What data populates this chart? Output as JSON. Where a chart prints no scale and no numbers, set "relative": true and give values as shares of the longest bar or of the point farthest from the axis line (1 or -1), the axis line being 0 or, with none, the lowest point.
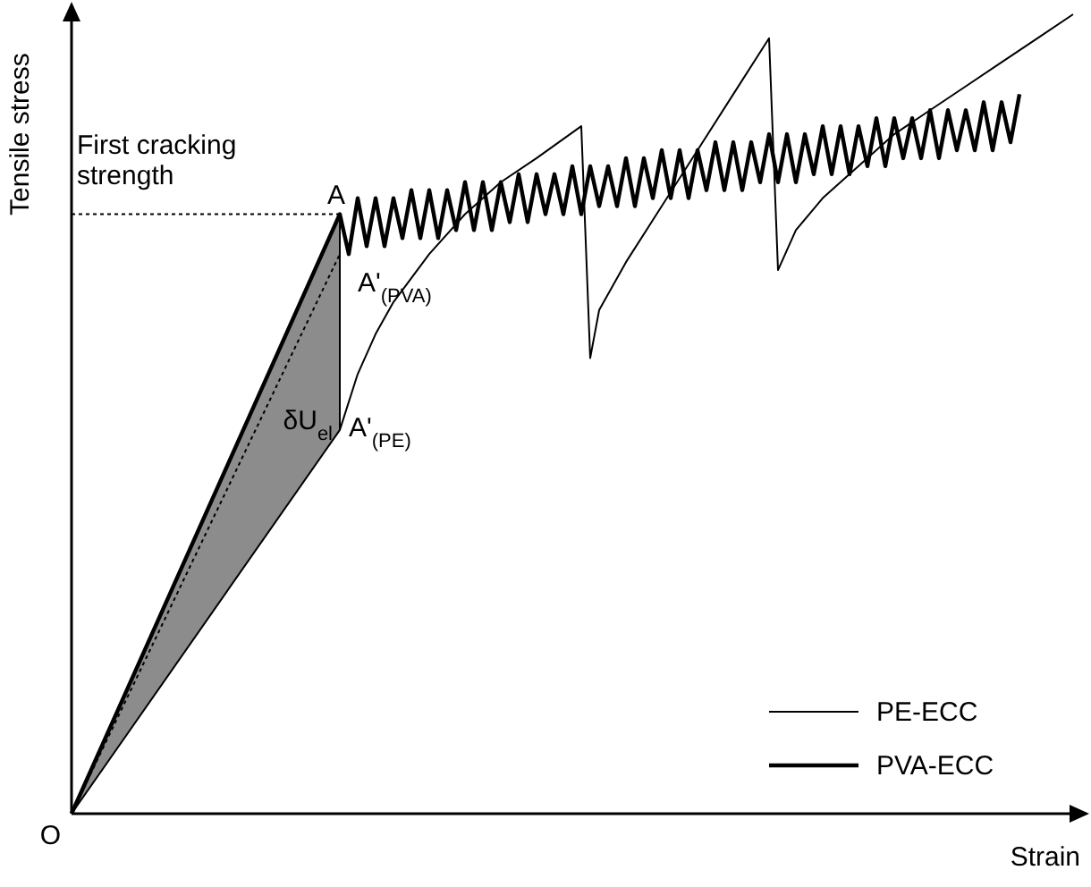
{
  "chart_data": {
    "type": "line",
    "relative": true,
    "xlabel": "Strain",
    "ylabel": "Tensile stress",
    "tick_labels": false,
    "legend": "bottom right",
    "categories": [
      null,
      null,
      null,
      null,
      null,
      null,
      null,
      null,
      null,
      null,
      null,
      null,
      null,
      null,
      null,
      null,
      null,
      null,
      null,
      null,
      null,
      null,
      null,
      null,
      null,
      null,
      null,
      null,
      null,
      null,
      null,
      null,
      null,
      null,
      null,
      null,
      null,
      null,
      null,
      null,
      null,
      null,
      null,
      null,
      null,
      null,
      null,
      null,
      null,
      null,
      null,
      null,
      null,
      null,
      null,
      null,
      null,
      null,
      null,
      null,
      null,
      null,
      null,
      null,
      null,
      null,
      null,
      null,
      null,
      null,
      null,
      null,
      null,
      null,
      null,
      null,
      null,
      null,
      null,
      null,
      null,
      null,
      null,
      null,
      null,
      null,
      null,
      null,
      null,
      null,
      null,
      null,
      null,
      null,
      null,
      null,
      null,
      null,
      null,
      null,
      null,
      null,
      null,
      null,
      null,
      null,
      null,
      null,
      null,
      null,
      null,
      null,
      null
    ],
    "series": [
      {
        "name": "PE-ECC",
        "color": "#000000",
        "values": [
          0,
          null,
          null,
          null,
          null,
          null,
          null,
          null,
          null,
          null,
          null,
          null,
          null,
          null,
          null,
          null,
          null,
          null,
          null,
          null,
          null,
          null,
          null,
          null,
          null,
          null,
          null,
          null,
          null,
          null,
          0.48,
          null,
          0.55,
          null,
          0.6,
          null,
          0.64,
          null,
          null,
          null,
          0.7,
          null,
          null,
          null,
          0.75,
          null,
          null,
          null,
          0.79,
          null,
          null,
          null,
          0.82,
          null,
          null,
          null,
          null,
          0.86,
          0.57,
          0.63,
          null,
          null,
          0.69,
          null,
          null,
          null,
          0.76,
          null,
          null,
          null,
          0.83,
          null,
          null,
          null,
          0.9,
          null,
          null,
          null,
          0.97,
          0.68,
          null,
          0.73,
          null,
          null,
          0.77,
          null,
          null,
          null,
          0.81,
          null,
          null,
          null,
          0.85,
          null,
          null,
          null,
          0.88,
          null,
          null,
          null,
          0.91,
          null,
          null,
          null,
          0.94,
          null,
          null,
          null,
          0.97,
          null,
          null,
          null,
          1
        ]
      },
      {
        "name": "PVA-ECC",
        "color": "#000000",
        "values": [
          0,
          null,
          null,
          null,
          null,
          null,
          null,
          null,
          null,
          null,
          null,
          null,
          null,
          null,
          null,
          null,
          null,
          null,
          null,
          null,
          null,
          null,
          null,
          null,
          null,
          null,
          null,
          null,
          null,
          null,
          0.75,
          0.7,
          0.77,
          0.71,
          0.77,
          0.71,
          0.77,
          0.72,
          0.78,
          0.72,
          0.78,
          0.72,
          0.78,
          0.73,
          0.79,
          0.73,
          0.79,
          0.73,
          0.79,
          0.74,
          0.8,
          0.74,
          0.8,
          0.75,
          0.8,
          0.75,
          0.81,
          0.75,
          0.81,
          0.76,
          0.81,
          0.76,
          0.82,
          0.76,
          0.82,
          0.77,
          0.83,
          0.77,
          0.83,
          0.77,
          0.83,
          0.78,
          0.84,
          0.78,
          0.84,
          0.78,
          0.84,
          0.79,
          0.85,
          0.79,
          0.85,
          0.79,
          0.85,
          0.8,
          0.86,
          0.8,
          0.86,
          0.8,
          0.86,
          0.81,
          0.87,
          0.81,
          0.87,
          0.82,
          0.87,
          0.82,
          0.88,
          0.82,
          0.88,
          0.83,
          0.88,
          0.83,
          0.89,
          0.83,
          0.89,
          0.84,
          0.9,
          null,
          null,
          null,
          null,
          null,
          null
        ]
      },
      {
        "color": "#000000",
        "line_style": "dotted",
        "values": [
          0,
          null,
          null,
          null,
          null,
          null,
          null,
          null,
          null,
          null,
          null,
          null,
          null,
          null,
          null,
          null,
          null,
          null,
          null,
          null,
          null,
          null,
          null,
          null,
          null,
          null,
          null,
          null,
          null,
          null,
          0.7,
          null,
          null,
          null,
          null,
          null,
          null,
          null,
          null,
          null,
          null,
          null,
          null,
          null,
          null,
          null,
          null,
          null,
          null,
          null,
          null,
          null,
          null,
          null,
          null,
          null,
          null,
          null,
          null,
          null,
          null,
          null,
          null,
          null,
          null,
          null,
          null,
          null,
          null,
          null,
          null,
          null,
          null,
          null,
          null,
          null,
          null,
          null,
          null,
          null,
          null,
          null,
          null,
          null,
          null,
          null,
          null,
          null,
          null,
          null,
          null,
          null,
          null,
          null,
          null,
          null,
          null,
          null,
          null,
          null,
          null,
          null,
          null,
          null,
          null,
          null,
          null,
          null,
          null,
          null,
          null,
          null,
          null
        ]
      },
      {
        "color": "#000000",
        "line_style": "dotted",
        "values": [
          0.75,
          null,
          null,
          null,
          null,
          null,
          null,
          null,
          null,
          null,
          null,
          null,
          null,
          null,
          null,
          null,
          null,
          null,
          null,
          null,
          null,
          null,
          null,
          null,
          null,
          null,
          null,
          null,
          null,
          null,
          0.75,
          null,
          null,
          null,
          null,
          null,
          null,
          null,
          null,
          null,
          null,
          null,
          null,
          null,
          null,
          null,
          null,
          null,
          null,
          null,
          null,
          null,
          null,
          null,
          null,
          null,
          null,
          null,
          null,
          null,
          null,
          null,
          null,
          null,
          null,
          null,
          null,
          null,
          null,
          null,
          null,
          null,
          null,
          null,
          null,
          null,
          null,
          null,
          null,
          null,
          null,
          null,
          null,
          null,
          null,
          null,
          null,
          null,
          null,
          null,
          null,
          null,
          null,
          null,
          null,
          null,
          null,
          null,
          null,
          null,
          null,
          null,
          null,
          null,
          null,
          null,
          null,
          null,
          null,
          null,
          null,
          null,
          null
        ]
      }
    ],
    "annotations": [
      "First cracking strength",
      "A",
      "A'$_{(PVA)}$",
      "A'$_{(PE)}$",
      "δU$_{el}$",
      "O"
    ]
  }
}
